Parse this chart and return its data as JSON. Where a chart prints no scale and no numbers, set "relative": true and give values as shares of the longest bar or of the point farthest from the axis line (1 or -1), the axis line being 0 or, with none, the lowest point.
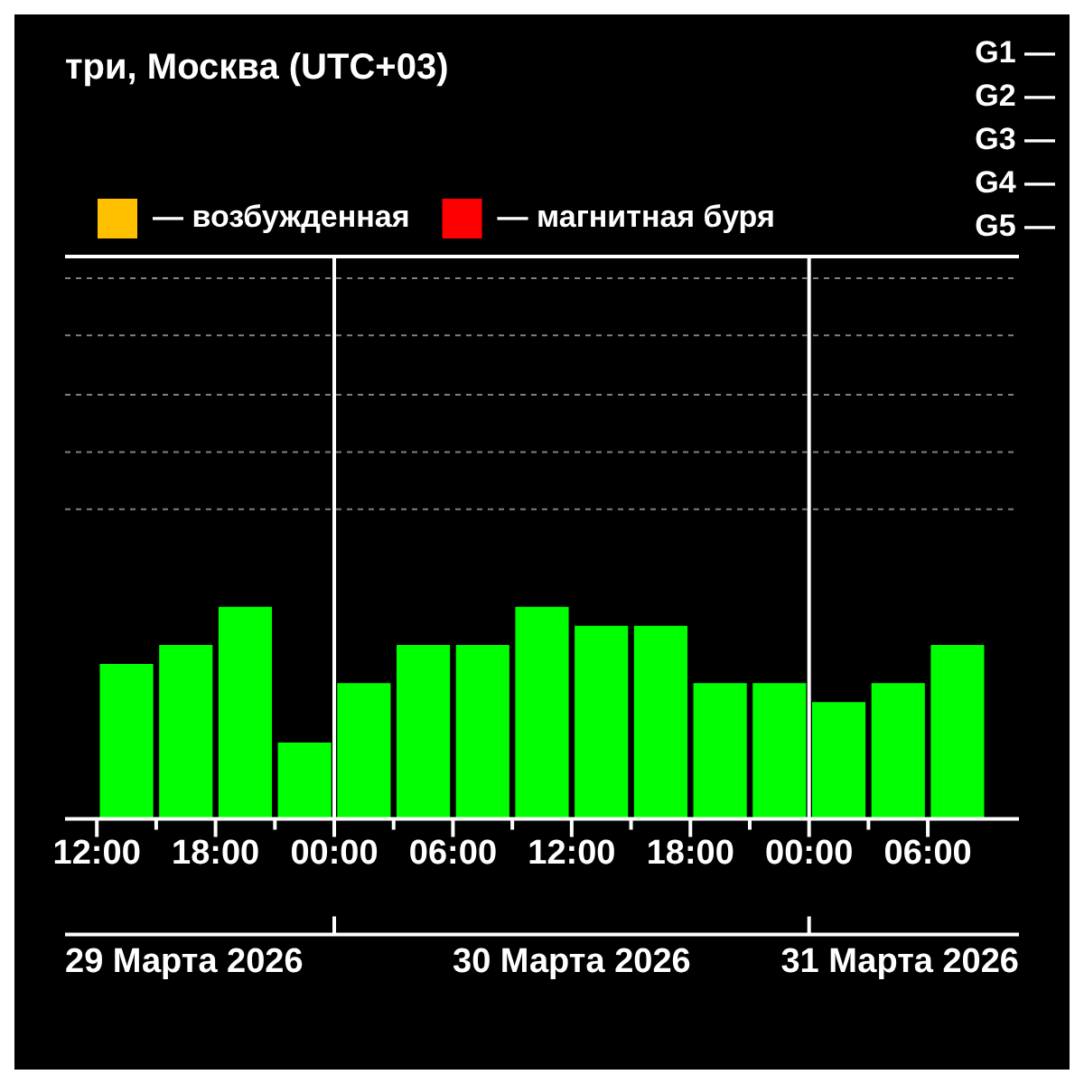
{
  "chart_data": {
    "type": "bar",
    "title": "три, Москва (UTC+03)",
    "relative": true,
    "x": [
      "2026-03-29T13:30",
      "2026-03-29T16:30",
      "2026-03-29T19:30",
      "2026-03-29T22:30",
      "2026-03-30T01:30",
      "2026-03-30T04:30",
      "2026-03-30T07:30",
      "2026-03-30T10:30",
      "2026-03-30T13:30",
      "2026-03-30T16:30",
      "2026-03-30T19:30",
      "2026-03-30T22:30",
      "2026-03-31T01:30",
      "2026-03-31T04:30",
      "2026-03-31T07:30"
    ],
    "series": [
      {
        "color": "#00ff00",
        "values": [
          0.73,
          0.82,
          1,
          0.36,
          0.64,
          0.82,
          0.82,
          1,
          0.91,
          0.91,
          0.64,
          0.64,
          0.55,
          0.64,
          0.82
        ]
      },
      {
        "name": "— возбужденная",
        "color": "#ffc000",
        "values": [
          null,
          null,
          null,
          null,
          null,
          null,
          null,
          null,
          null,
          null,
          null,
          null,
          null,
          null,
          null
        ]
      },
      {
        "name": "— магнитная буря",
        "color": "#ff0000",
        "values": [
          null,
          null,
          null,
          null,
          null,
          null,
          null,
          null,
          null,
          null,
          null,
          null,
          null,
          null,
          null
        ]
      }
    ],
    "xlim": [
      "2026-03-29T12:00",
      "2026-03-31T09:00"
    ],
    "xticks": [
      {
        "value": "2026-03-29T12:00",
        "label": "12:00"
      },
      {
        "value": "2026-03-29T15:00",
        "label": null
      },
      {
        "value": "2026-03-29T18:00",
        "label": "18:00"
      },
      {
        "value": "2026-03-29T21:00",
        "label": null
      },
      {
        "value": "2026-03-30T00:00",
        "label": "00:00"
      },
      {
        "value": "2026-03-30T03:00",
        "label": null
      },
      {
        "value": "2026-03-30T06:00",
        "label": "06:00"
      },
      {
        "value": "2026-03-30T09:00",
        "label": null
      },
      {
        "value": "2026-03-30T12:00",
        "label": "12:00"
      },
      {
        "value": "2026-03-30T15:00",
        "label": null
      },
      {
        "value": "2026-03-30T18:00",
        "label": "18:00"
      },
      {
        "value": "2026-03-30T21:00",
        "label": null
      },
      {
        "value": "2026-03-31T00:00",
        "label": "00:00"
      },
      {
        "value": "2026-03-31T03:00",
        "label": null
      },
      {
        "value": "2026-03-31T06:00",
        "label": "06:00"
      }
    ],
    "ref_lines": [
      {
        "axis": "x",
        "value": "2026-03-30T00:00",
        "color": "#ffffff"
      },
      {
        "axis": "x",
        "value": "2026-03-31T00:00",
        "color": "#ffffff"
      },
      {
        "axis": "y",
        "value": 1.46,
        "color": "#808080",
        "line_style": "dashed"
      },
      {
        "axis": "y",
        "value": 1.73,
        "color": "#808080",
        "line_style": "dashed"
      },
      {
        "axis": "y",
        "value": 2.0,
        "color": "#808080",
        "line_style": "dashed"
      },
      {
        "axis": "y",
        "value": 2.28,
        "color": "#808080",
        "line_style": "dashed"
      },
      {
        "axis": "y",
        "value": 2.55,
        "color": "#808080",
        "line_style": "dashed"
      }
    ],
    "legend": "top left",
    "annotations": [
      "G1 —",
      "G2 —",
      "G3 —",
      "G4 —",
      "G5 —",
      "29 Марта 2026",
      "30 Марта 2026",
      "31 Марта 2026"
    ]
  }
}
